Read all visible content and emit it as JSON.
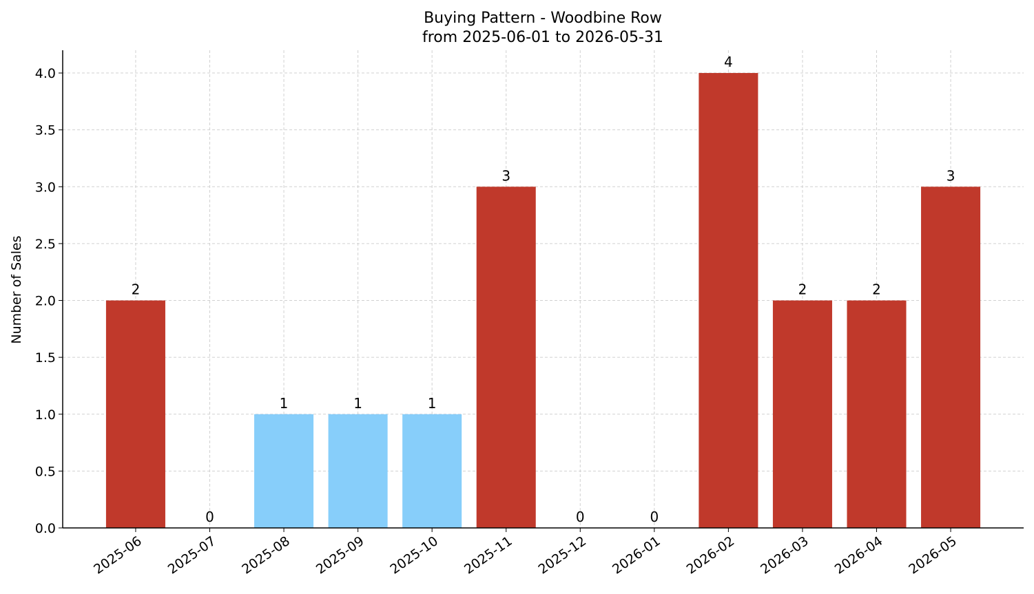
{
  "chart_data": {
    "type": "bar",
    "title": "Buying Pattern - Woodbine Row",
    "subtitle": "from 2025-06-01 to 2026-05-31",
    "y_label": "Number of Sales",
    "categories": [
      "2025-06",
      "2025-07",
      "2025-08",
      "2025-09",
      "2025-10",
      "2025-11",
      "2025-12",
      "2026-01",
      "2026-02",
      "2026-03",
      "2026-04",
      "2026-05"
    ],
    "values": [
      2,
      0,
      1,
      1,
      1,
      3,
      0,
      0,
      4,
      2,
      2,
      3
    ],
    "colors": [
      "#c0392b",
      "#87cefa",
      "#87cefa",
      "#87cefa",
      "#87cefa",
      "#c0392b",
      "#87cefa",
      "#87cefa",
      "#c0392b",
      "#c0392b",
      "#c0392b",
      "#c0392b"
    ],
    "ylim": [
      0,
      4.2
    ],
    "yticks": [
      {
        "value": 0,
        "label": "0.0"
      },
      {
        "value": 0.5,
        "label": "0.5"
      },
      {
        "value": 1,
        "label": "1.0"
      },
      {
        "value": 1.5,
        "label": "1.5"
      },
      {
        "value": 2,
        "label": "2.0"
      },
      {
        "value": 2.5,
        "label": "2.5"
      },
      {
        "value": 3,
        "label": "3.0"
      },
      {
        "value": 3.5,
        "label": "3.5"
      },
      {
        "value": 4,
        "label": "4.0"
      }
    ],
    "grid": true
  }
}
